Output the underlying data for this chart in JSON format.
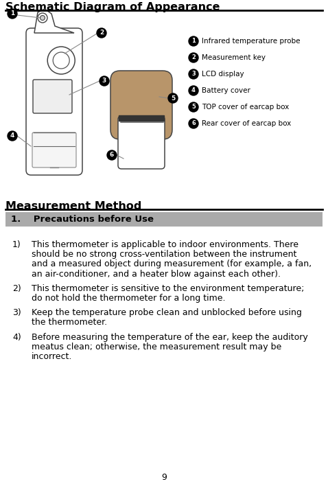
{
  "title1": "Schematic Diagram of Appearance",
  "title2": "Measurement Method",
  "section_title": "1.    Precautions before Use",
  "section_bg": "#aaaaaa",
  "legend_items": [
    {
      "num": "1",
      "text": "Infrared temperature probe"
    },
    {
      "num": "2",
      "text": "Measurement key"
    },
    {
      "num": "3",
      "text": "LCD display"
    },
    {
      "num": "4",
      "text": "Battery cover"
    },
    {
      "num": "5",
      "text": "TOP cover of earcap box"
    },
    {
      "num": "6",
      "text": "Rear cover of earcap box"
    }
  ],
  "body_items": [
    {
      "num": "1)",
      "lines": [
        "This thermometer is applicable to indoor environments. There",
        "should be no strong cross-ventilation between the instrument",
        "and a measured object during measurement (for example, a fan,",
        "an air-conditioner, and a heater blow against each other)."
      ]
    },
    {
      "num": "2)",
      "lines": [
        "This thermometer is sensitive to the environment temperature;",
        "do not hold the thermometer for a long time."
      ]
    },
    {
      "num": "3)",
      "lines": [
        "Keep the temperature probe clean and unblocked before using",
        "the thermometer."
      ]
    },
    {
      "num": "4)",
      "lines": [
        "Before measuring the temperature of the ear, keep the auditory",
        "meatus clean; otherwise, the measurement result may be",
        "incorrect."
      ]
    }
  ],
  "page_number": "9",
  "bg_color": "#ffffff",
  "text_color": "#000000",
  "title1_fontsize": 11.5,
  "title2_fontsize": 11.5,
  "body_fontsize": 9.0,
  "section_fontsize": 9.5,
  "legend_fontsize": 7.5
}
